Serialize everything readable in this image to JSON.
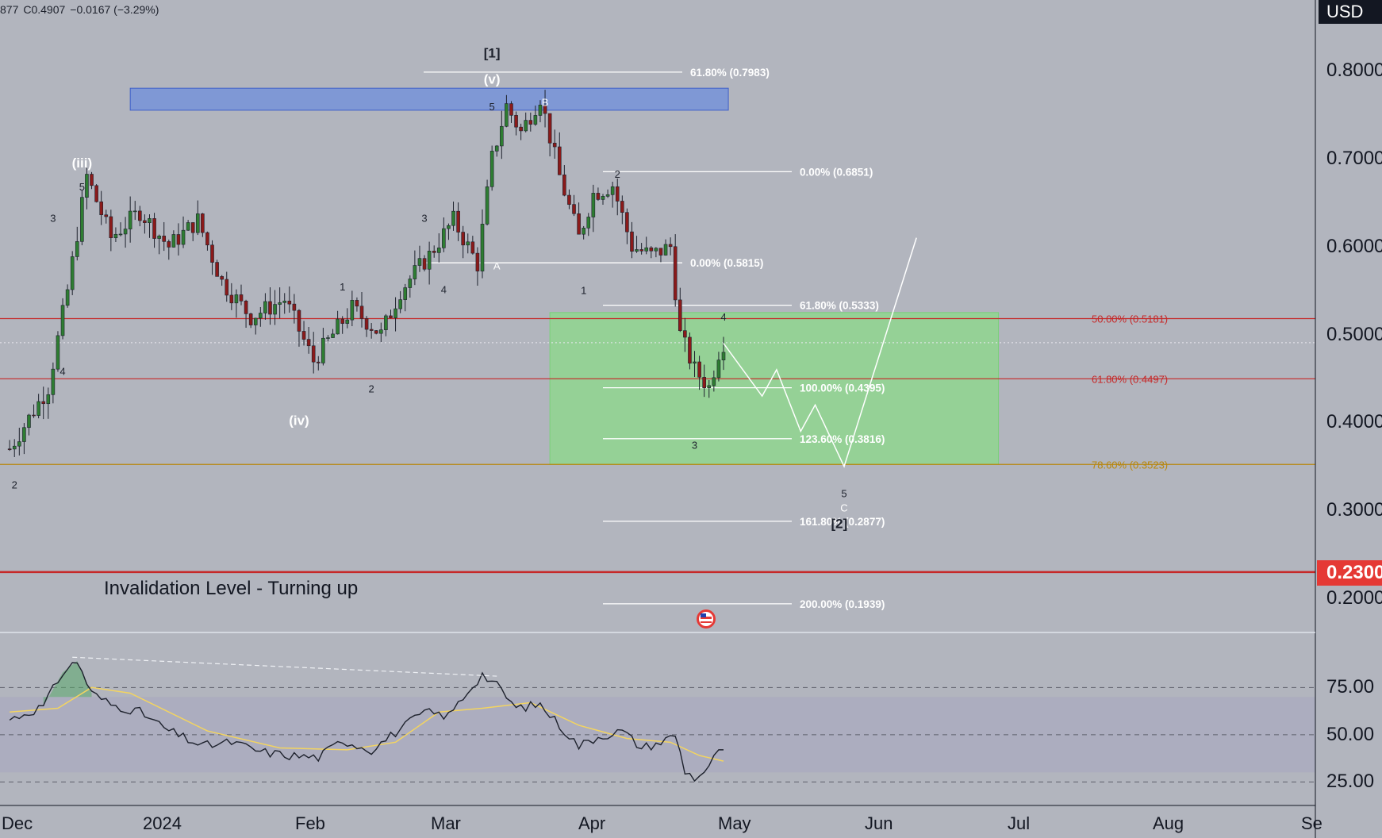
{
  "header": {
    "ohlc_prefix": "877",
    "close": "C0.4907",
    "change": "−0.0167 (−3.29%)"
  },
  "currency": "USD",
  "invalidation": {
    "label": "Invalidation Level - Turning up",
    "price_label": "0.2300"
  },
  "colors": {
    "background": "#b2b5be",
    "up": "#26a69a",
    "down": "#ef5350",
    "candle_outline": "#1e222d",
    "blue_zone": "#6e8fdc",
    "green_zone": "#8fd68f",
    "red_line": "#c62828",
    "gold_line": "#b8860b",
    "white": "#ffffff",
    "rsi_line": "#1e222d",
    "rsi_ma": "#f3d460"
  },
  "chart_data": [
    {
      "type": "candlestick",
      "title": "",
      "ylim": [
        0.18,
        0.82
      ],
      "yticks": [
        "0.8000",
        "0.7000",
        "0.6000",
        "0.5000",
        "0.4000",
        "0.3000",
        "0.2000"
      ],
      "yticks_values": [
        0.8,
        0.7,
        0.6,
        0.5,
        0.4,
        0.3,
        0.2
      ],
      "xticks": [
        "Dec",
        "2024",
        "Feb",
        "Mar",
        "Apr",
        "May",
        "Jun",
        "Jul",
        "Aug",
        "Se"
      ],
      "close_path": [
        [
          "2023-11-25",
          0.37
        ],
        [
          "2023-12-03",
          0.44
        ],
        [
          "2023-12-07",
          0.55
        ],
        [
          "2023-12-11",
          0.68
        ],
        [
          "2023-12-16",
          0.61
        ],
        [
          "2023-12-22",
          0.64
        ],
        [
          "2023-12-28",
          0.6
        ],
        [
          "2024-01-03",
          0.63
        ],
        [
          "2024-01-08",
          0.56
        ],
        [
          "2024-01-14",
          0.52
        ],
        [
          "2024-01-21",
          0.54
        ],
        [
          "2024-01-27",
          0.47
        ],
        [
          "2024-02-04",
          0.53
        ],
        [
          "2024-02-10",
          0.5
        ],
        [
          "2024-02-14",
          0.55
        ],
        [
          "2024-02-20",
          0.59
        ],
        [
          "2024-02-25",
          0.63
        ],
        [
          "2024-03-01",
          0.58
        ],
        [
          "2024-03-04",
          0.7
        ],
        [
          "2024-03-07",
          0.76
        ],
        [
          "2024-03-10",
          0.73
        ],
        [
          "2024-03-14",
          0.77
        ],
        [
          "2024-03-18",
          0.68
        ],
        [
          "2024-03-22",
          0.61
        ],
        [
          "2024-03-25",
          0.66
        ],
        [
          "2024-03-29",
          0.67
        ],
        [
          "2024-04-02",
          0.6
        ],
        [
          "2024-04-06",
          0.59
        ],
        [
          "2024-04-10",
          0.6
        ],
        [
          "2024-04-12",
          0.5
        ],
        [
          "2024-04-15",
          0.46
        ],
        [
          "2024-04-18",
          0.44
        ],
        [
          "2024-04-20",
          0.48
        ],
        [
          "2024-04-21",
          0.4907
        ]
      ],
      "price_lines": [
        {
          "label": "50.00% (0.5181)",
          "value": 0.5181,
          "color": "red"
        },
        {
          "label": "61.80% (0.4497)",
          "value": 0.4497,
          "color": "red"
        },
        {
          "label": "78.60% (0.3523)",
          "value": 0.3523,
          "color": "gold"
        },
        {
          "label": "",
          "value": 0.23,
          "color": "red-bold"
        }
      ],
      "fib_levels": [
        {
          "label": "61.80% (0.7983)",
          "value": 0.7983
        },
        {
          "label": "0.00% (0.6851)",
          "value": 0.6851
        },
        {
          "label": "0.00% (0.5815)",
          "value": 0.5815
        },
        {
          "label": "61.80% (0.5333)",
          "value": 0.5333
        },
        {
          "label": "100.00% (0.4395)",
          "value": 0.4395
        },
        {
          "label": "123.60% (0.3816)",
          "value": 0.3816
        },
        {
          "label": "161.80% (0.2877)",
          "value": 0.2877
        },
        {
          "label": "200.00% (0.1939)",
          "value": 0.1939
        }
      ],
      "zones": [
        {
          "name": "blue-resistance-zone",
          "from": "2023-12-20",
          "to": "2024-04-22",
          "low": 0.755,
          "high": 0.78
        },
        {
          "name": "green-target-zone",
          "from": "2024-03-16",
          "to": "2024-06-17",
          "low": 0.3523,
          "high": 0.525
        }
      ],
      "projection": [
        [
          "2024-04-21",
          0.49
        ],
        [
          "2024-04-29",
          0.43
        ],
        [
          "2024-05-02",
          0.46
        ],
        [
          "2024-05-07",
          0.39
        ],
        [
          "2024-05-10",
          0.42
        ],
        [
          "2024-05-16",
          0.35
        ],
        [
          "2024-05-31",
          0.61
        ]
      ],
      "wave_labels": [
        {
          "text": "[1]",
          "x": "2024-03-04",
          "y": 0.815
        },
        {
          "text": "(v)",
          "x": "2024-03-04",
          "y": 0.785
        },
        {
          "text": "5",
          "x": "2024-03-04",
          "y": 0.755
        },
        {
          "text": "B",
          "x": "2024-03-15",
          "y": 0.76
        },
        {
          "text": "(iii)",
          "x": "2023-12-10",
          "y": 0.69
        },
        {
          "text": "5",
          "x": "2023-12-10",
          "y": 0.664
        },
        {
          "text": "3",
          "x": "2023-12-04",
          "y": 0.628
        },
        {
          "text": "3",
          "x": "2024-02-19",
          "y": 0.628
        },
        {
          "text": "2",
          "x": "2024-03-30",
          "y": 0.678
        },
        {
          "text": "A",
          "x": "2024-03-05",
          "y": 0.574
        },
        {
          "text": "4",
          "x": "2024-02-23",
          "y": 0.547
        },
        {
          "text": "1",
          "x": "2024-02-02",
          "y": 0.55
        },
        {
          "text": "1",
          "x": "2024-03-23",
          "y": 0.546
        },
        {
          "text": "4",
          "x": "2024-04-21",
          "y": 0.516
        },
        {
          "text": "4",
          "x": "2023-12-06",
          "y": 0.454
        },
        {
          "text": "2",
          "x": "2024-02-08",
          "y": 0.434
        },
        {
          "text": "(iv)",
          "x": "2024-01-24",
          "y": 0.397
        },
        {
          "text": "3",
          "x": "2024-04-15",
          "y": 0.37
        },
        {
          "text": "2",
          "x": "2023-11-26",
          "y": 0.325
        },
        {
          "text": "5",
          "x": "2024-05-16",
          "y": 0.315
        },
        {
          "text": "C",
          "x": "2024-05-16",
          "y": 0.299
        },
        {
          "text": "[2]",
          "x": "2024-05-15",
          "y": 0.28
        }
      ]
    },
    {
      "type": "line",
      "title": "",
      "ylim": [
        14,
        98
      ],
      "yticks": [
        "75.00",
        "50.00",
        "25.00"
      ],
      "yticks_values": [
        75,
        50,
        25
      ],
      "band": [
        30,
        70
      ],
      "series": [
        {
          "values": [
            [
              "2023-11-25",
              58
            ],
            [
              "2023-12-02",
              65
            ],
            [
              "2023-12-06",
              83
            ],
            [
              "2023-12-09",
              89
            ],
            [
              "2023-12-12",
              72
            ],
            [
              "2023-12-16",
              66
            ],
            [
              "2023-12-22",
              62
            ],
            [
              "2023-12-28",
              52
            ],
            [
              "2024-01-04",
              44
            ],
            [
              "2024-01-10",
              46
            ],
            [
              "2024-01-16",
              41
            ],
            [
              "2024-01-22",
              39
            ],
            [
              "2024-01-28",
              38
            ],
            [
              "2024-02-02",
              47
            ],
            [
              "2024-02-08",
              42
            ],
            [
              "2024-02-14",
              53
            ],
            [
              "2024-02-19",
              62
            ],
            [
              "2024-02-24",
              60
            ],
            [
              "2024-02-28",
              73
            ],
            [
              "2024-03-02",
              82
            ],
            [
              "2024-03-05",
              76
            ],
            [
              "2024-03-09",
              64
            ],
            [
              "2024-03-14",
              66
            ],
            [
              "2024-03-18",
              55
            ],
            [
              "2024-03-22",
              44
            ],
            [
              "2024-03-26",
              49
            ],
            [
              "2024-03-31",
              52
            ],
            [
              "2024-04-04",
              43
            ],
            [
              "2024-04-08",
              46
            ],
            [
              "2024-04-11",
              50
            ],
            [
              "2024-04-13",
              31
            ],
            [
              "2024-04-15",
              27
            ],
            [
              "2024-04-18",
              32
            ],
            [
              "2024-04-20",
              43
            ],
            [
              "2024-04-21",
              40
            ]
          ]
        },
        {
          "values": [
            [
              "2023-11-25",
              62
            ],
            [
              "2023-12-05",
              64
            ],
            [
              "2023-12-12",
              75
            ],
            [
              "2023-12-20",
              72
            ],
            [
              "2024-01-05",
              52
            ],
            [
              "2024-01-20",
              43
            ],
            [
              "2024-02-03",
              42
            ],
            [
              "2024-02-13",
              46
            ],
            [
              "2024-02-22",
              62
            ],
            [
              "2024-03-02",
              64
            ],
            [
              "2024-03-12",
              67
            ],
            [
              "2024-03-22",
              55
            ],
            [
              "2024-04-01",
              48
            ],
            [
              "2024-04-10",
              46
            ],
            [
              "2024-04-16",
              39
            ],
            [
              "2024-04-21",
              36
            ]
          ]
        }
      ],
      "divergence_line": [
        [
          "2023-12-08",
          91
        ],
        [
          "2024-03-05",
          81
        ]
      ]
    }
  ]
}
